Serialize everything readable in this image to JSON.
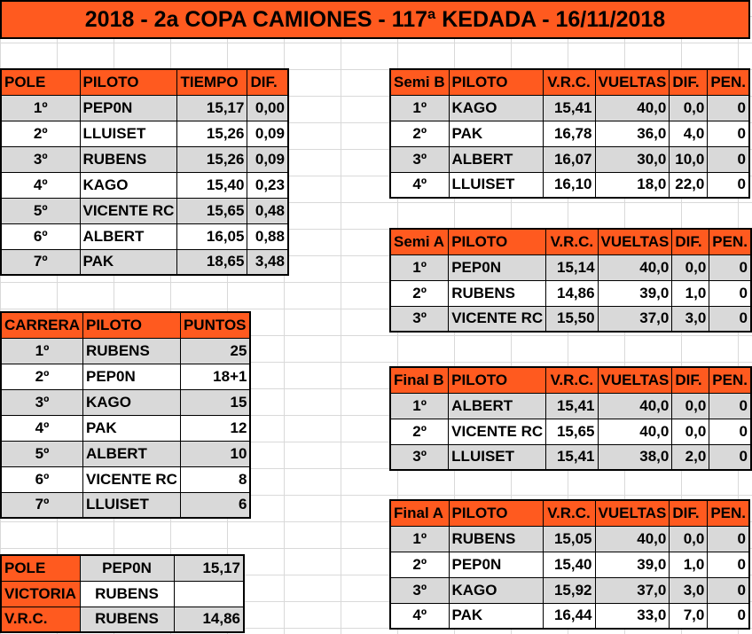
{
  "title": "2018 - 2a COPA CAMIONES - 117ª KEDADA - 16/11/2018",
  "pole": {
    "headers": [
      "POLE",
      "PILOTO",
      "TIEMPO",
      "DIF."
    ],
    "rows": [
      [
        "1º",
        "PEP0N",
        "15,17",
        "0,00"
      ],
      [
        "2º",
        "LLUISET",
        "15,26",
        "0,09"
      ],
      [
        "3º",
        "RUBENS",
        "15,26",
        "0,09"
      ],
      [
        "4º",
        "KAGO",
        "15,40",
        "0,23"
      ],
      [
        "5º",
        "VICENTE RC",
        "15,65",
        "0,48"
      ],
      [
        "6º",
        "ALBERT",
        "16,05",
        "0,88"
      ],
      [
        "7º",
        "PAK",
        "18,65",
        "3,48"
      ]
    ]
  },
  "carrera": {
    "headers": [
      "CARRERA",
      "PILOTO",
      "PUNTOS"
    ],
    "rows": [
      [
        "1º",
        "RUBENS",
        "25"
      ],
      [
        "2º",
        "PEP0N",
        "18+1"
      ],
      [
        "3º",
        "KAGO",
        "15"
      ],
      [
        "4º",
        "PAK",
        "12"
      ],
      [
        "5º",
        "ALBERT",
        "10"
      ],
      [
        "6º",
        "VICENTE RC",
        "8"
      ],
      [
        "7º",
        "LLUISET",
        "6"
      ]
    ]
  },
  "summary": {
    "rows": [
      [
        "POLE",
        "PEP0N",
        "15,17"
      ],
      [
        "VICTORIA",
        "RUBENS",
        ""
      ],
      [
        "V.R.C.",
        "RUBENS",
        "14,86"
      ]
    ]
  },
  "semi_b": {
    "headers": [
      "Semi B",
      "PILOTO",
      "V.R.C.",
      "VUELTAS",
      "DIF.",
      "PEN."
    ],
    "rows": [
      [
        "1º",
        "KAGO",
        "15,41",
        "40,0",
        "0,0",
        "0"
      ],
      [
        "2º",
        "PAK",
        "16,78",
        "36,0",
        "4,0",
        "0"
      ],
      [
        "3º",
        "ALBERT",
        "16,07",
        "30,0",
        "10,0",
        "0"
      ],
      [
        "4º",
        "LLUISET",
        "16,10",
        "18,0",
        "22,0",
        "0"
      ]
    ]
  },
  "semi_a": {
    "headers": [
      "Semi A",
      "PILOTO",
      "V.R.C.",
      "VUELTAS",
      "DIF.",
      "PEN."
    ],
    "rows": [
      [
        "1º",
        "PEP0N",
        "15,14",
        "40,0",
        "0,0",
        "0"
      ],
      [
        "2º",
        "RUBENS",
        "14,86",
        "39,0",
        "1,0",
        "0"
      ],
      [
        "3º",
        "VICENTE RC",
        "15,50",
        "37,0",
        "3,0",
        "0"
      ]
    ]
  },
  "final_b": {
    "headers": [
      "Final B",
      "PILOTO",
      "V.R.C.",
      "VUELTAS",
      "DIF.",
      "PEN."
    ],
    "rows": [
      [
        "1º",
        "ALBERT",
        "15,41",
        "40,0",
        "0,0",
        "0"
      ],
      [
        "2º",
        "VICENTE RC",
        "15,65",
        "40,0",
        "0,0",
        "0"
      ],
      [
        "3º",
        "LLUISET",
        "15,41",
        "38,0",
        "2,0",
        "0"
      ]
    ]
  },
  "final_a": {
    "headers": [
      "Final A",
      "PILOTO",
      "V.R.C.",
      "VUELTAS",
      "DIF.",
      "PEN."
    ],
    "rows": [
      [
        "1º",
        "RUBENS",
        "15,05",
        "40,0",
        "0,0",
        "0"
      ],
      [
        "2º",
        "PEP0N",
        "15,40",
        "39,0",
        "1,0",
        "0"
      ],
      [
        "3º",
        "KAGO",
        "15,92",
        "37,0",
        "3,0",
        "0"
      ],
      [
        "4º",
        "PAK",
        "16,44",
        "33,0",
        "7,0",
        "0"
      ]
    ]
  }
}
